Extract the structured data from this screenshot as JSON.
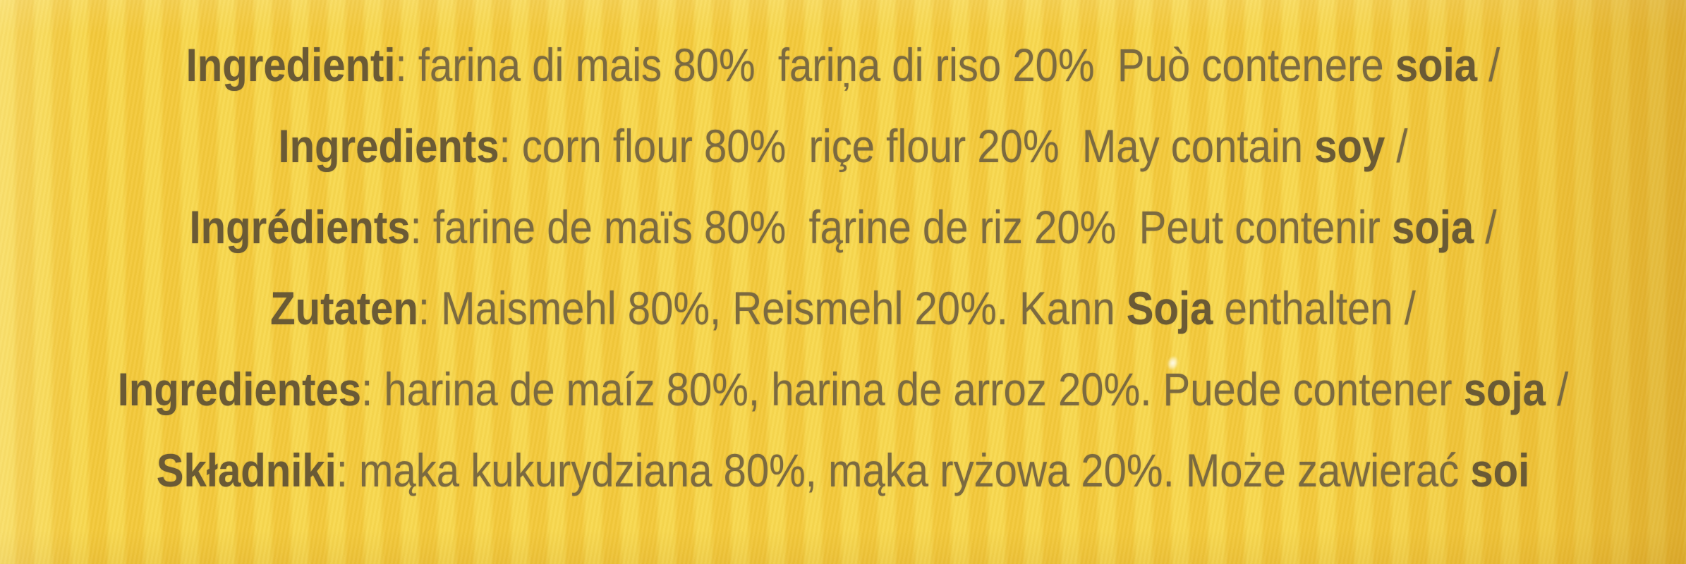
{
  "panel": {
    "lines": [
      {
        "label": "Ingredienti",
        "mid": ": farina di mais 80%  fariņa di riso 20%  Può contenere ",
        "allergen": "soia",
        "tail": " /"
      },
      {
        "label": "Ingredients",
        "mid": ": corn flour 80%  riçe flour 20%  May contain ",
        "allergen": "soy",
        "tail": " /"
      },
      {
        "label": "Ingrédients",
        "mid": ": farine de maïs 80%  fąrine de riz 20%  Peut contenir ",
        "allergen": "soja",
        "tail": " /"
      },
      {
        "label": "Zutaten",
        "mid": ": Maismehl 80%, Reismehl 20%. Kann ",
        "allergen": "Soja",
        "tail": " enthalten /"
      },
      {
        "label": "Ingredientes",
        "mid": ": harina de maíz 80%, harina de arroz 20%. Puede contener ",
        "allergen": "soja",
        "tail": " /"
      },
      {
        "label": "Składniki",
        "mid": ": mąka kukurydziana 80%, mąka ryżowa 20%. Może zawierać ",
        "allergen": "soi",
        "tail": ""
      }
    ]
  },
  "colors": {
    "stripe_light": "#f8d84f",
    "stripe_dark": "#f3c93b",
    "edge_shade": "#b2700e",
    "text": "#7b6a40",
    "text_bold": "#6a5a35"
  }
}
